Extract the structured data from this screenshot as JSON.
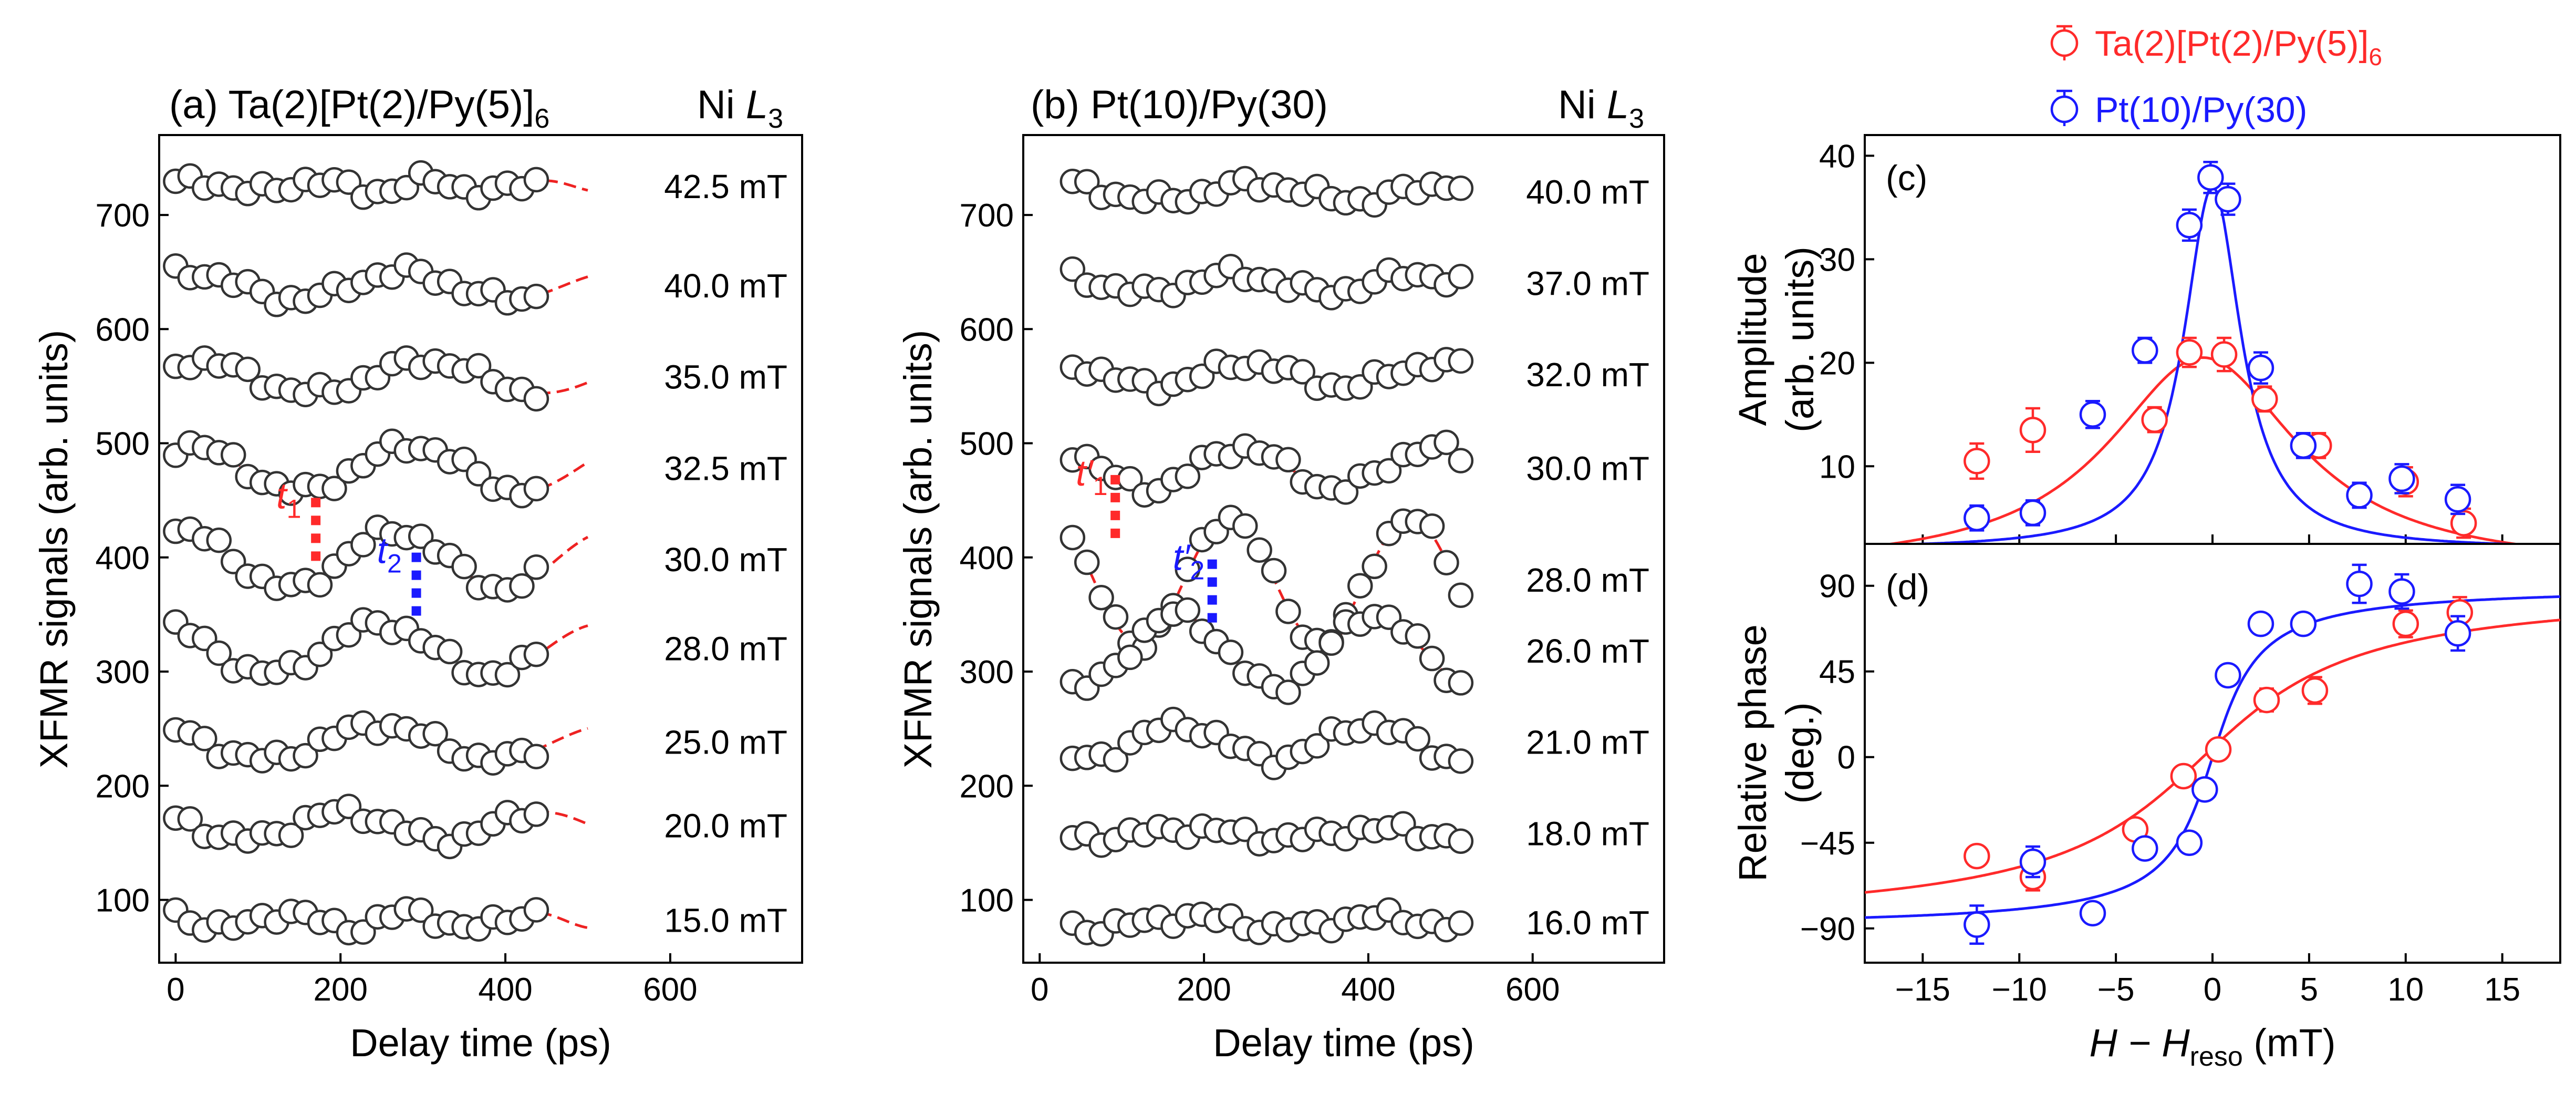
{
  "colors": {
    "red": "#ff2a2a",
    "blue": "#1a1aff",
    "grey": "#555555",
    "fit_red": "#ee2222"
  },
  "legend": {
    "items": [
      {
        "label": "Ta(2)[Pt(2)/Py(5)]",
        "subscript": "6",
        "color": "red"
      },
      {
        "label": "Pt(10)/Py(30)",
        "subscript": "",
        "color": "blue"
      }
    ]
  },
  "chart_data": [
    {
      "id": "a",
      "type": "scatter",
      "title": "(a) Ta(2)[Pt(2)/Py(5)]",
      "title_subscript": "6",
      "edge_label": "Ni ",
      "edge_label_italic": "L",
      "edge_label_subscript": "3",
      "xlabel": "Delay time (ps)",
      "ylabel": "XFMR signals (arb. units)",
      "xlim": [
        -20,
        760
      ],
      "ylim": [
        45,
        770
      ],
      "xticks": [
        0,
        200,
        400,
        600
      ],
      "yticks": [
        100,
        200,
        300,
        400,
        500,
        600,
        700
      ],
      "x_start": 0,
      "x_step": 17.5,
      "n_points": 26,
      "traces": [
        {
          "label": "42.5 mT",
          "baseline": 725,
          "amp": 5,
          "period": 140,
          "phase": 0.3
        },
        {
          "label": "40.0 mT",
          "baseline": 638,
          "amp": 12,
          "period": 260,
          "phase": 1.2
        },
        {
          "label": "35.0 mT",
          "baseline": 558,
          "amp": 14,
          "period": 280,
          "phase": 1.0
        },
        {
          "label": "32.5 mT",
          "baseline": 478,
          "amp": 20,
          "period": 270,
          "phase": 1.2
        },
        {
          "label": "30.0 mT",
          "baseline": 398,
          "amp": 25,
          "period": 260,
          "phase": 1.4
        },
        {
          "label": "28.0 mT",
          "baseline": 320,
          "amp": 22,
          "period": 270,
          "phase": 2.1
        },
        {
          "label": "25.0 mT",
          "baseline": 238,
          "amp": 15,
          "period": 280,
          "phase": 2.3
        },
        {
          "label": "20.0 mT",
          "baseline": 165,
          "amp": 12,
          "period": 240,
          "phase": 2.5
        },
        {
          "label": "15.0 mT",
          "baseline": 82,
          "amp": 7,
          "period": 150,
          "phase": 2.2
        }
      ],
      "markers": [
        {
          "label": "t",
          "subscript": "1",
          "x": 170,
          "y": 420,
          "color": "red"
        },
        {
          "label": "t",
          "subscript": "2",
          "x": 292,
          "y": 372,
          "color": "blue"
        }
      ]
    },
    {
      "id": "b",
      "type": "scatter",
      "title": "(b) Pt(10)/Py(30)",
      "title_subscript": "",
      "edge_label": "Ni ",
      "edge_label_italic": "L",
      "edge_label_subscript": "3",
      "xlabel": "Delay time (ps)",
      "ylabel": "XFMR signals (arb. units)",
      "xlim": [
        -20,
        760
      ],
      "ylim": [
        45,
        770
      ],
      "xticks": [
        0,
        200,
        400,
        600
      ],
      "yticks": [
        100,
        200,
        300,
        400,
        500,
        600,
        700
      ],
      "x_start": 40,
      "x_step": 17.5,
      "n_points": 28,
      "traces": [
        {
          "label": "40.0 mT",
          "baseline": 720,
          "amp": 7,
          "period": 240,
          "phase": 2.0
        },
        {
          "label": "37.0 mT",
          "baseline": 640,
          "amp": 8,
          "period": 220,
          "phase": 2.2
        },
        {
          "label": "32.0 mT",
          "baseline": 560,
          "amp": 10,
          "period": 230,
          "phase": 2.0
        },
        {
          "label": "30.0 mT",
          "baseline": 478,
          "amp": 18,
          "period": 230,
          "phase": 2.2
        },
        {
          "label": "28.0 mT",
          "baseline": 380,
          "amp": 55,
          "period": 220,
          "phase": 2.4
        },
        {
          "label": "26.0 mT",
          "baseline": 318,
          "amp": 32,
          "period": 240,
          "phase": 4.5
        },
        {
          "label": "21.0 mT",
          "baseline": 238,
          "amp": 15,
          "period": 230,
          "phase": 4.3
        },
        {
          "label": "18.0 mT",
          "baseline": 158,
          "amp": 4,
          "period": 230,
          "phase": 4.0
        },
        {
          "label": "16.0 mT",
          "baseline": 80,
          "amp": 5,
          "period": 230,
          "phase": 4.0
        }
      ],
      "markers": [
        {
          "label": "t′",
          "subscript": "1",
          "x": 92,
          "y": 440,
          "color": "red"
        },
        {
          "label": "t′",
          "subscript": "2",
          "x": 210,
          "y": 366,
          "color": "blue"
        }
      ]
    },
    {
      "id": "c",
      "type": "scatter",
      "panel_label": "(c)",
      "xlabel": "",
      "ylabel": "Amplitude",
      "ylabel2": "(arb. units)",
      "xlim": [
        -18,
        18
      ],
      "ylim": [
        2.5,
        42
      ],
      "xticks": [],
      "yticks": [
        10,
        20,
        30,
        40
      ],
      "series": [
        {
          "name": "Ta(2)[Pt(2)/Py(5)]6",
          "color": "red",
          "x": [
            -12.2,
            -9.3,
            -3.0,
            -1.2,
            0.6,
            2.7,
            5.5,
            10.0,
            13.0
          ],
          "y": [
            10.5,
            13.5,
            14.5,
            21.0,
            20.8,
            16.5,
            12.0,
            8.5,
            4.5
          ],
          "err": [
            1.7,
            2.1,
            1.2,
            1.4,
            1.6,
            1.2,
            1.2,
            1.4,
            1.4
          ],
          "fit": {
            "model": "lorentzian",
            "peak": 20.5,
            "center": -0.5,
            "hwhm": 6.0
          }
        },
        {
          "name": "Pt(10)/Py(30)",
          "color": "blue",
          "x": [
            -12.2,
            -9.3,
            -6.2,
            -3.5,
            -1.2,
            -0.1,
            0.8,
            2.5,
            4.7,
            7.6,
            9.8,
            12.7
          ],
          "y": [
            5.0,
            5.5,
            15.0,
            21.2,
            33.3,
            37.9,
            35.8,
            19.5,
            12.0,
            7.2,
            8.8,
            6.8
          ],
          "err": [
            1.2,
            1.2,
            1.3,
            1.2,
            1.5,
            1.5,
            1.5,
            1.5,
            1.2,
            1.2,
            1.4,
            1.4
          ],
          "fit": {
            "model": "lorentzian",
            "peak": 37.0,
            "center": 0.0,
            "hwhm": 1.8,
            "base": 2.0
          }
        }
      ]
    },
    {
      "id": "d",
      "type": "scatter",
      "panel_label": "(d)",
      "xlabel": "H − H",
      "xlabel_subscript": "reso",
      "xlabel_unit": " (mT)",
      "ylabel": "Relative phase",
      "ylabel2": "(deg.)",
      "xlim": [
        -18,
        18
      ],
      "ylim": [
        -108,
        112
      ],
      "xticks": [
        -15,
        -10,
        -5,
        0,
        5,
        10,
        15
      ],
      "yticks": [
        -90,
        -45,
        0,
        45,
        90
      ],
      "series": [
        {
          "name": "Ta(2)[Pt(2)/Py(5)]6",
          "color": "red",
          "x": [
            -12.2,
            -9.3,
            -4.0,
            -1.5,
            0.3,
            2.8,
            5.3,
            10.0,
            12.8
          ],
          "y": [
            -52,
            -63,
            -38,
            -10,
            4,
            30,
            35,
            70,
            76
          ],
          "err": [
            5,
            7,
            4,
            4,
            4,
            6,
            7,
            7,
            8
          ],
          "fit": {
            "model": "arctan",
            "center": -0.5,
            "hwhm": 6.0
          }
        },
        {
          "name": "Pt(10)/Py(30)",
          "color": "blue",
          "x": [
            -12.2,
            -9.3,
            -6.2,
            -3.5,
            -1.2,
            -0.4,
            0.8,
            2.5,
            4.7,
            7.6,
            9.8,
            12.7
          ],
          "y": [
            -88,
            -55,
            -82,
            -48,
            -45,
            -17,
            43,
            70,
            70,
            91,
            87,
            65
          ],
          "err": [
            10,
            8,
            4,
            4,
            4,
            5,
            4,
            4,
            4,
            10,
            9,
            9
          ],
          "fit": {
            "model": "arctan",
            "center": 0.0,
            "hwhm": 1.8
          }
        }
      ]
    }
  ]
}
